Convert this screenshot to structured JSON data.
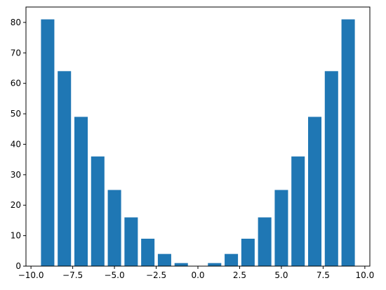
{
  "chart_data": {
    "type": "bar",
    "title": "",
    "xlabel": "",
    "ylabel": "",
    "x": [
      -9,
      -8,
      -7,
      -6,
      -5,
      -4,
      -3,
      -2,
      -1,
      0,
      1,
      2,
      3,
      4,
      5,
      6,
      7,
      8,
      9
    ],
    "values": [
      81,
      64,
      49,
      36,
      25,
      16,
      9,
      4,
      1,
      0,
      1,
      4,
      9,
      16,
      25,
      36,
      49,
      64,
      81
    ],
    "bar_width": 0.8,
    "xlim": [
      -10.3,
      10.3
    ],
    "ylim": [
      0,
      85.05
    ],
    "xticks": [
      -10.0,
      -7.5,
      -5.0,
      -2.5,
      0.0,
      2.5,
      5.0,
      7.5,
      10.0
    ],
    "xtick_labels": [
      "−10.0",
      "−7.5",
      "−5.0",
      "−2.5",
      "0.0",
      "2.5",
      "5.0",
      "7.5",
      "10.0"
    ],
    "yticks": [
      0,
      10,
      20,
      30,
      40,
      50,
      60,
      70,
      80
    ],
    "ytick_labels": [
      "0",
      "10",
      "20",
      "30",
      "40",
      "50",
      "60",
      "70",
      "80"
    ],
    "grid": false,
    "legend": "none",
    "bar_color": "#1f77b4"
  }
}
